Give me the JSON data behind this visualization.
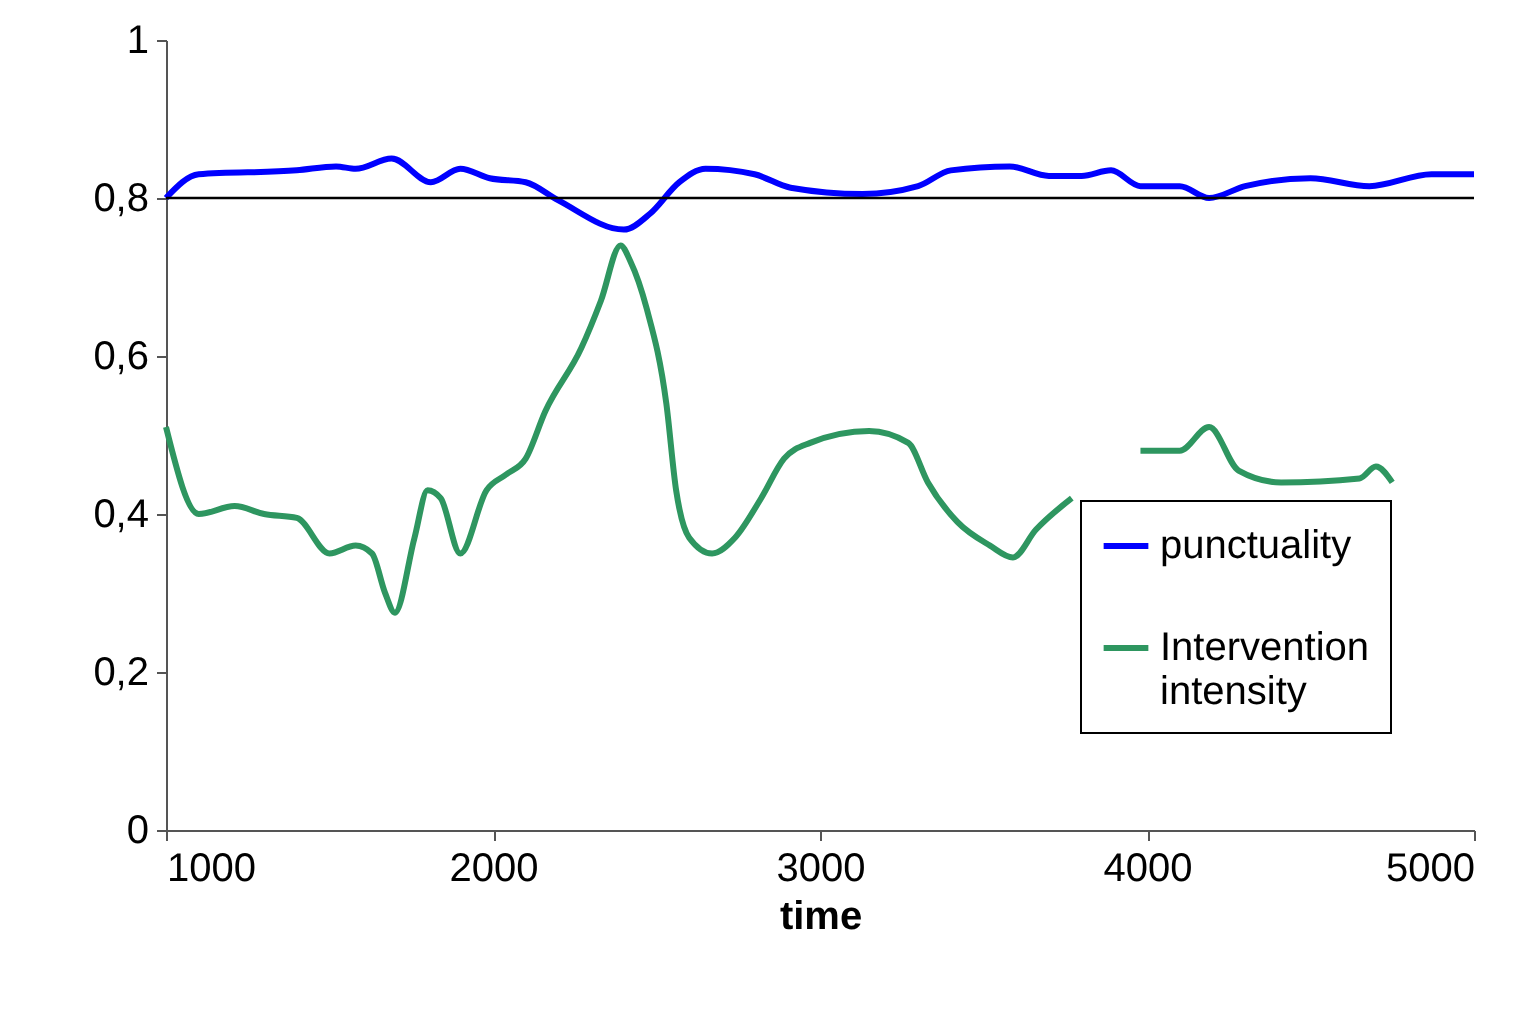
{
  "chart_data": {
    "type": "line",
    "xlabel": "time",
    "xlim": [
      1000,
      5000
    ],
    "xticks": [
      1000,
      2000,
      3000,
      4000,
      5000
    ],
    "ylim": [
      0,
      1
    ],
    "yticks": [
      {
        "value": 0,
        "label": "0"
      },
      {
        "value": 0.2,
        "label": "0,2"
      },
      {
        "value": 0.4,
        "label": "0,4"
      },
      {
        "value": 0.6,
        "label": "0,6"
      },
      {
        "value": 0.8,
        "label": "0,8"
      },
      {
        "value": 1,
        "label": "1"
      }
    ],
    "grid": false,
    "legend": "right",
    "ref_lines": [
      {
        "axis": "y",
        "value": 0.8,
        "color": "#000000"
      }
    ],
    "series": [
      {
        "name": "punctuality",
        "color": "#0000ff",
        "x": [
          1000,
          1100,
          1400,
          1520,
          1580,
          1690,
          1810,
          1900,
          1990,
          2100,
          2200,
          2400,
          2480,
          2570,
          2650,
          2800,
          2910,
          3130,
          3300,
          3400,
          3580,
          3700,
          3800,
          3890,
          3980,
          4100,
          4190,
          4300,
          4500,
          4680,
          4870,
          5000
        ],
        "values": [
          0.8,
          0.83,
          0.835,
          0.84,
          0.837,
          0.85,
          0.82,
          0.837,
          0.825,
          0.82,
          0.797,
          0.76,
          0.78,
          0.82,
          0.837,
          0.83,
          0.813,
          0.805,
          0.815,
          0.835,
          0.84,
          0.828,
          0.828,
          0.835,
          0.815,
          0.815,
          0.8,
          0.815,
          0.825,
          0.815,
          0.83,
          0.83
        ]
      },
      {
        "name": "Intervention intensity",
        "color": "#2e9660",
        "x": [
          1000,
          1100,
          1210,
          1300,
          1400,
          1500,
          1580,
          1630,
          1670,
          1700,
          1760,
          1800,
          1840,
          1900,
          1980,
          2040,
          2100,
          2160,
          2270,
          2330,
          2390,
          2420,
          2470,
          2530,
          2560,
          2600,
          2670,
          2740,
          2820,
          2890,
          2970,
          3150,
          3270,
          3330,
          3420,
          3520,
          3590,
          3660,
          3770,
          3870,
          3980,
          4100,
          4190,
          4280,
          4410,
          4650,
          4700,
          4750
        ],
        "values": [
          0.51,
          0.4,
          0.41,
          0.4,
          0.395,
          0.35,
          0.36,
          0.35,
          0.3,
          0.275,
          0.37,
          0.43,
          0.42,
          0.35,
          0.43,
          0.45,
          0.47,
          0.53,
          0.61,
          0.67,
          0.74,
          0.72,
          0.66,
          0.54,
          0.43,
          0.37,
          0.35,
          0.37,
          0.42,
          0.47,
          0.49,
          0.505,
          0.49,
          0.44,
          0.39,
          0.36,
          0.345,
          0.38,
          0.42,
          null,
          0.48,
          0.48,
          0.51,
          0.455,
          0.44,
          0.445,
          0.46,
          0.44
        ]
      }
    ]
  }
}
